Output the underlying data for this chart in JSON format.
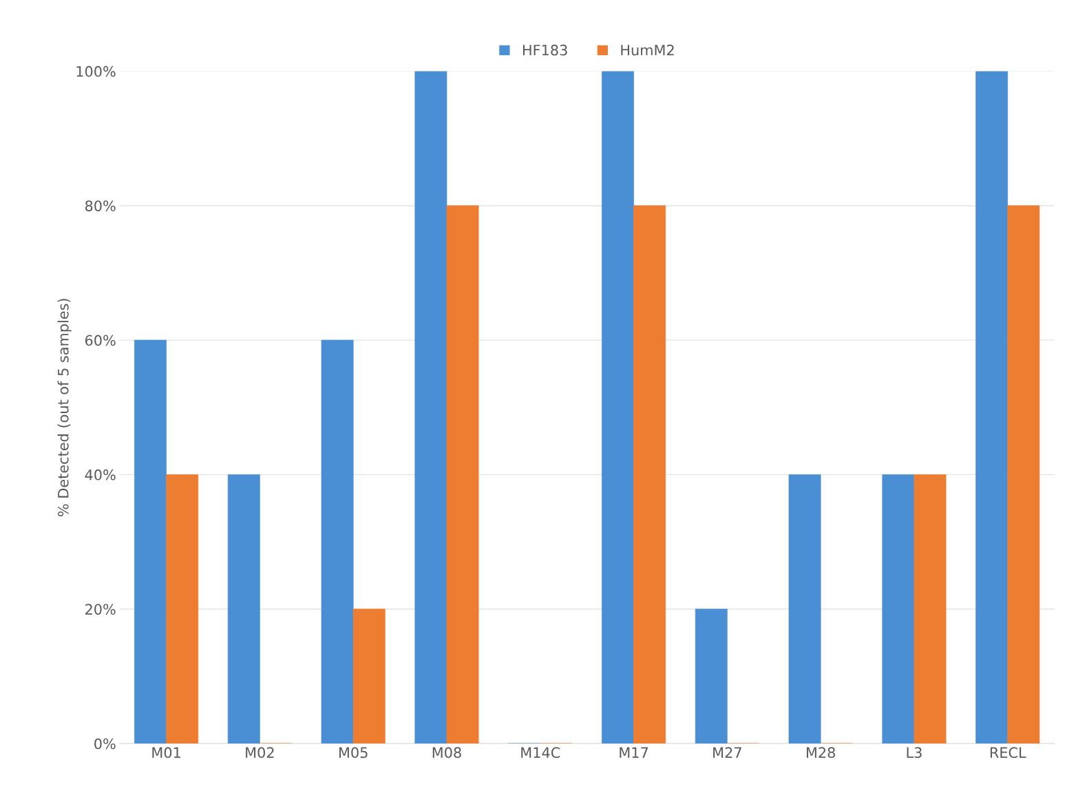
{
  "chart_data": {
    "type": "bar",
    "ylabel": "% Detected (out of 5 samples)",
    "categories": [
      "M01",
      "M02",
      "M05",
      "M08",
      "M14C",
      "M17",
      "M27",
      "M28",
      "L3",
      "RECL"
    ],
    "series": [
      {
        "name": "HF183",
        "color": "#4a8fd4",
        "values": [
          60,
          40,
          60,
          100,
          0,
          100,
          20,
          40,
          40,
          100
        ]
      },
      {
        "name": "HumM2",
        "color": "#ed7d31",
        "values": [
          40,
          0,
          20,
          80,
          0,
          80,
          0,
          0,
          40,
          80
        ]
      }
    ],
    "ylim": [
      0,
      100
    ],
    "yticks": [
      {
        "value": 0,
        "label": "0%"
      },
      {
        "value": 20,
        "label": "20%"
      },
      {
        "value": 40,
        "label": "40%"
      },
      {
        "value": 60,
        "label": "60%"
      },
      {
        "value": 80,
        "label": "80%"
      },
      {
        "value": 100,
        "label": "100%"
      }
    ],
    "grid": "y",
    "legend": "top"
  }
}
